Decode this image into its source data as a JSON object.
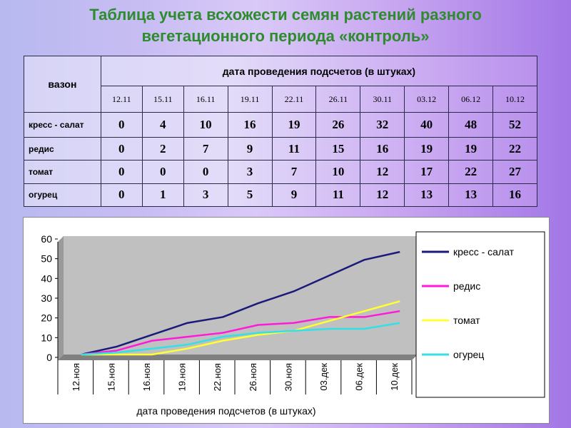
{
  "title": {
    "line1": "Таблица учета всхожести семян растений разного",
    "line2": "вегетационного периода «контроль»"
  },
  "table": {
    "row_header": "вазон",
    "column_group_header": "дата проведения подсчетов (в штуках)",
    "dates": [
      "12.11",
      "15.11",
      "16.11",
      "19.11",
      "22.11",
      "26.11",
      "30.11",
      "03.12",
      "06.12",
      "10.12"
    ],
    "rows": [
      {
        "label": "кресс - салат",
        "values": [
          "0",
          "4",
          "10",
          "16",
          "19",
          "26",
          "32",
          "40",
          "48",
          "52"
        ]
      },
      {
        "label": "редис",
        "values": [
          "0",
          "2",
          "7",
          "9",
          "11",
          "15",
          "16",
          "19",
          "19",
          "22"
        ]
      },
      {
        "label": "томат",
        "values": [
          "0",
          "0",
          "0",
          "3",
          "7",
          "10",
          "12",
          "17",
          "22",
          "27"
        ]
      },
      {
        "label": "огурец",
        "values": [
          "0",
          "1",
          "3",
          "5",
          "9",
          "11",
          "12",
          "13",
          "13",
          "16"
        ]
      }
    ]
  },
  "chart_data": {
    "type": "line",
    "categories": [
      "12.ноя",
      "15.ноя",
      "16.ноя",
      "19.ноя",
      "22.ноя",
      "26.ноя",
      "30.ноя",
      "03.дек",
      "06.дек",
      "10.дек"
    ],
    "xlabel": "дата проведения подсчетов (в штуках)",
    "ylabel": "",
    "ylim": [
      0,
      60
    ],
    "yticks": [
      0,
      10,
      20,
      30,
      40,
      50,
      60
    ],
    "grid": false,
    "legend_position": "right",
    "plot_background": "#c0c0c0",
    "series": [
      {
        "name": "кресс - салат",
        "color": "#1a1a7a",
        "values": [
          0,
          4,
          10,
          16,
          19,
          26,
          32,
          40,
          48,
          52
        ]
      },
      {
        "name": "редис",
        "color": "#ff1ad9",
        "values": [
          0,
          2,
          7,
          9,
          11,
          15,
          16,
          19,
          19,
          22
        ]
      },
      {
        "name": "томат",
        "color": "#ffff33",
        "values": [
          0,
          0,
          0,
          3,
          7,
          10,
          12,
          17,
          22,
          27
        ]
      },
      {
        "name": "огурец",
        "color": "#33e0e6",
        "values": [
          0,
          1,
          3,
          5,
          9,
          11,
          12,
          13,
          13,
          16
        ]
      }
    ]
  }
}
